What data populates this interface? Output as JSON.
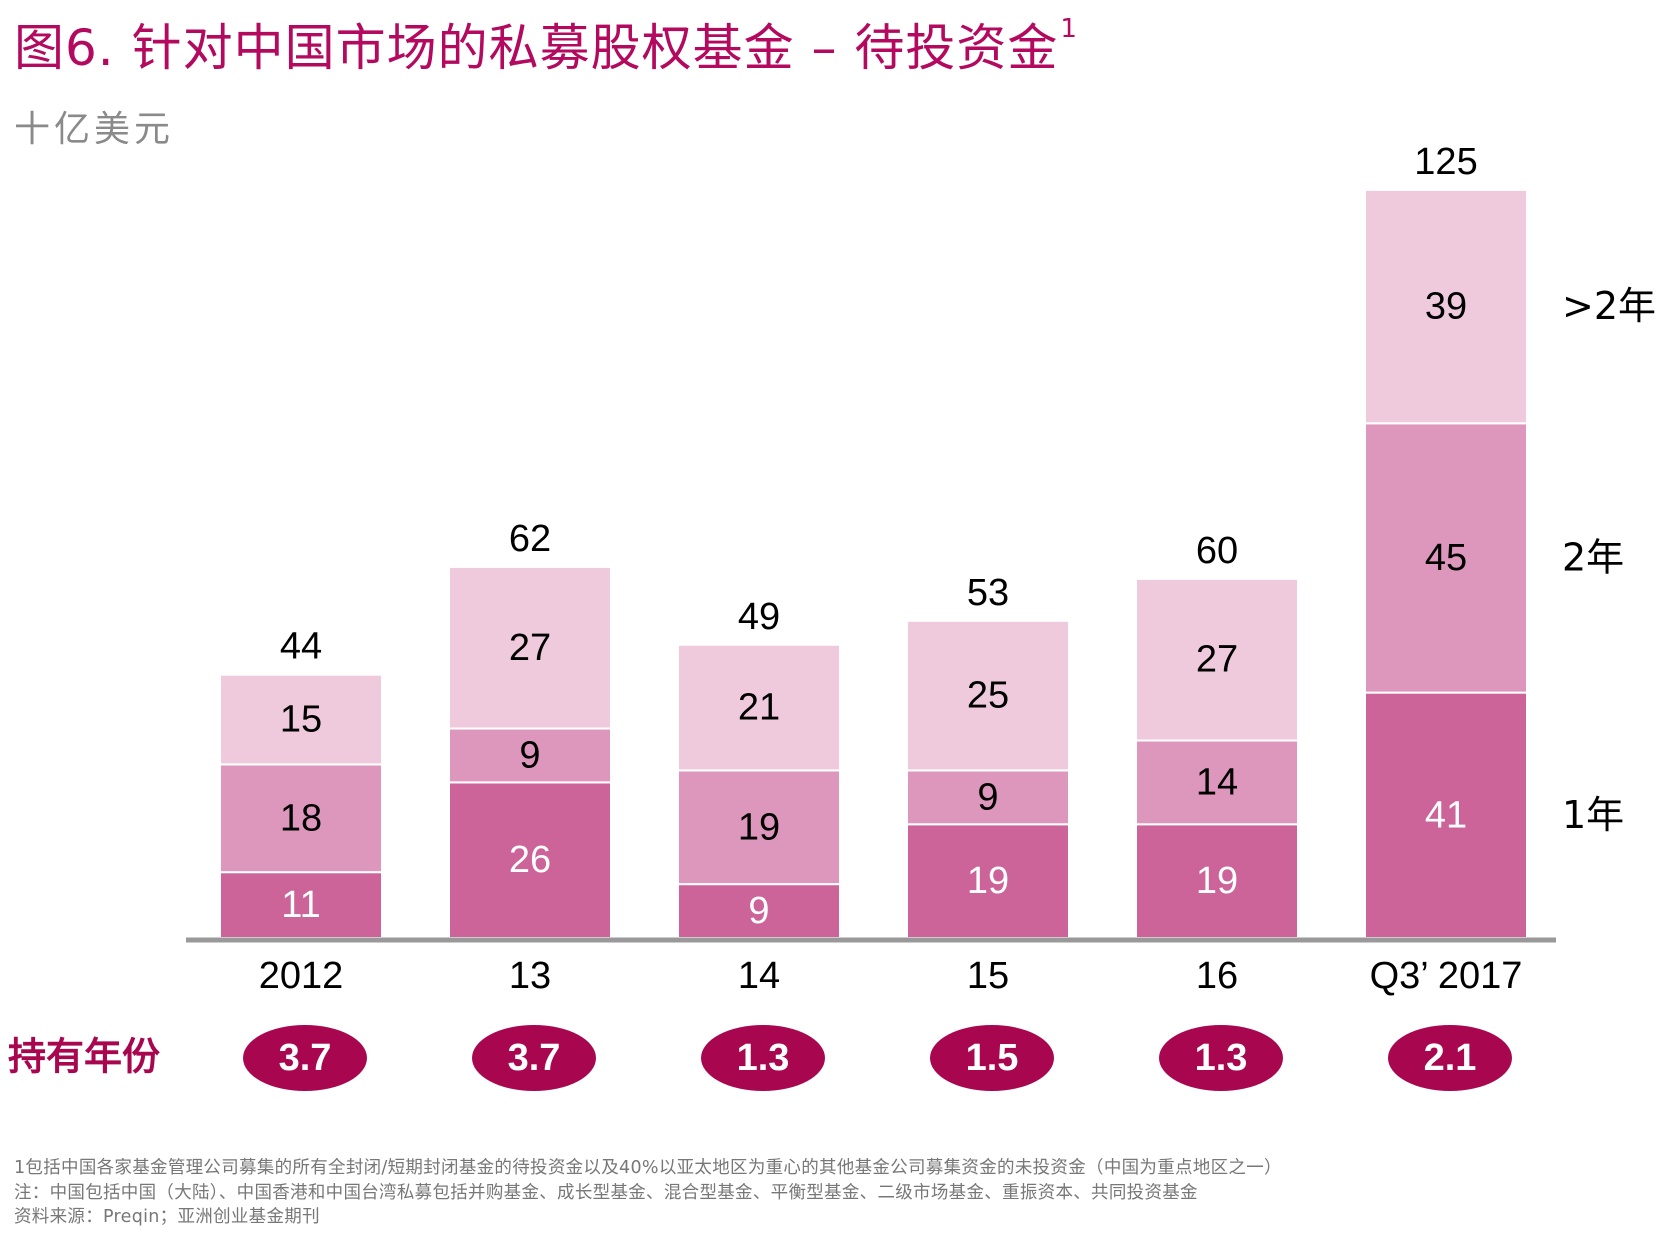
{
  "title": {
    "text": "图6. 针对中国市场的私募股权基金 – 待投资金",
    "superscript": "1"
  },
  "unit_label": "十亿美元",
  "chart_data": {
    "type": "bar",
    "stacked": true,
    "categories": [
      "2012",
      "13",
      "14",
      "15",
      "16",
      "Q3’ 2017"
    ],
    "series": [
      {
        "name": "1年",
        "values": [
          11,
          26,
          9,
          19,
          19,
          41
        ],
        "color": "#cc6499",
        "label_color": "#ffffff"
      },
      {
        "name": "2年",
        "values": [
          18,
          9,
          19,
          9,
          14,
          45
        ],
        "color": "#de97bc",
        "label_color": "#000000"
      },
      {
        "name": ">2年",
        "values": [
          15,
          27,
          21,
          25,
          27,
          39
        ],
        "color": "#efcadd",
        "label_color": "#000000"
      }
    ],
    "totals": [
      44,
      62,
      49,
      53,
      60,
      125
    ],
    "ylim": [
      0,
      125
    ],
    "grid": false,
    "legend_placement": "right"
  },
  "holding_years": {
    "label": "持有年份",
    "values": [
      "3.7",
      "3.7",
      "1.3",
      "1.5",
      "1.3",
      "2.1"
    ],
    "color": "#a8064f"
  },
  "footnotes": [
    "1包括中国各家基金管理公司募集的所有全封闭/短期封闭基金的待投资金以及40%以亚太地区为重心的其他基金公司募集资金的未投资金（中国为重点地区之一）",
    "注：中国包括中国（大陆）、中国香港和中国台湾私募包括并购基金、成长型基金、混合型基金、平衡型基金、二级市场基金、重振资本、共同投资基金",
    "资料来源：Preqin；亚洲创业基金期刊"
  ],
  "colors": {
    "accent": "#b3095f",
    "axis": "#999999"
  }
}
